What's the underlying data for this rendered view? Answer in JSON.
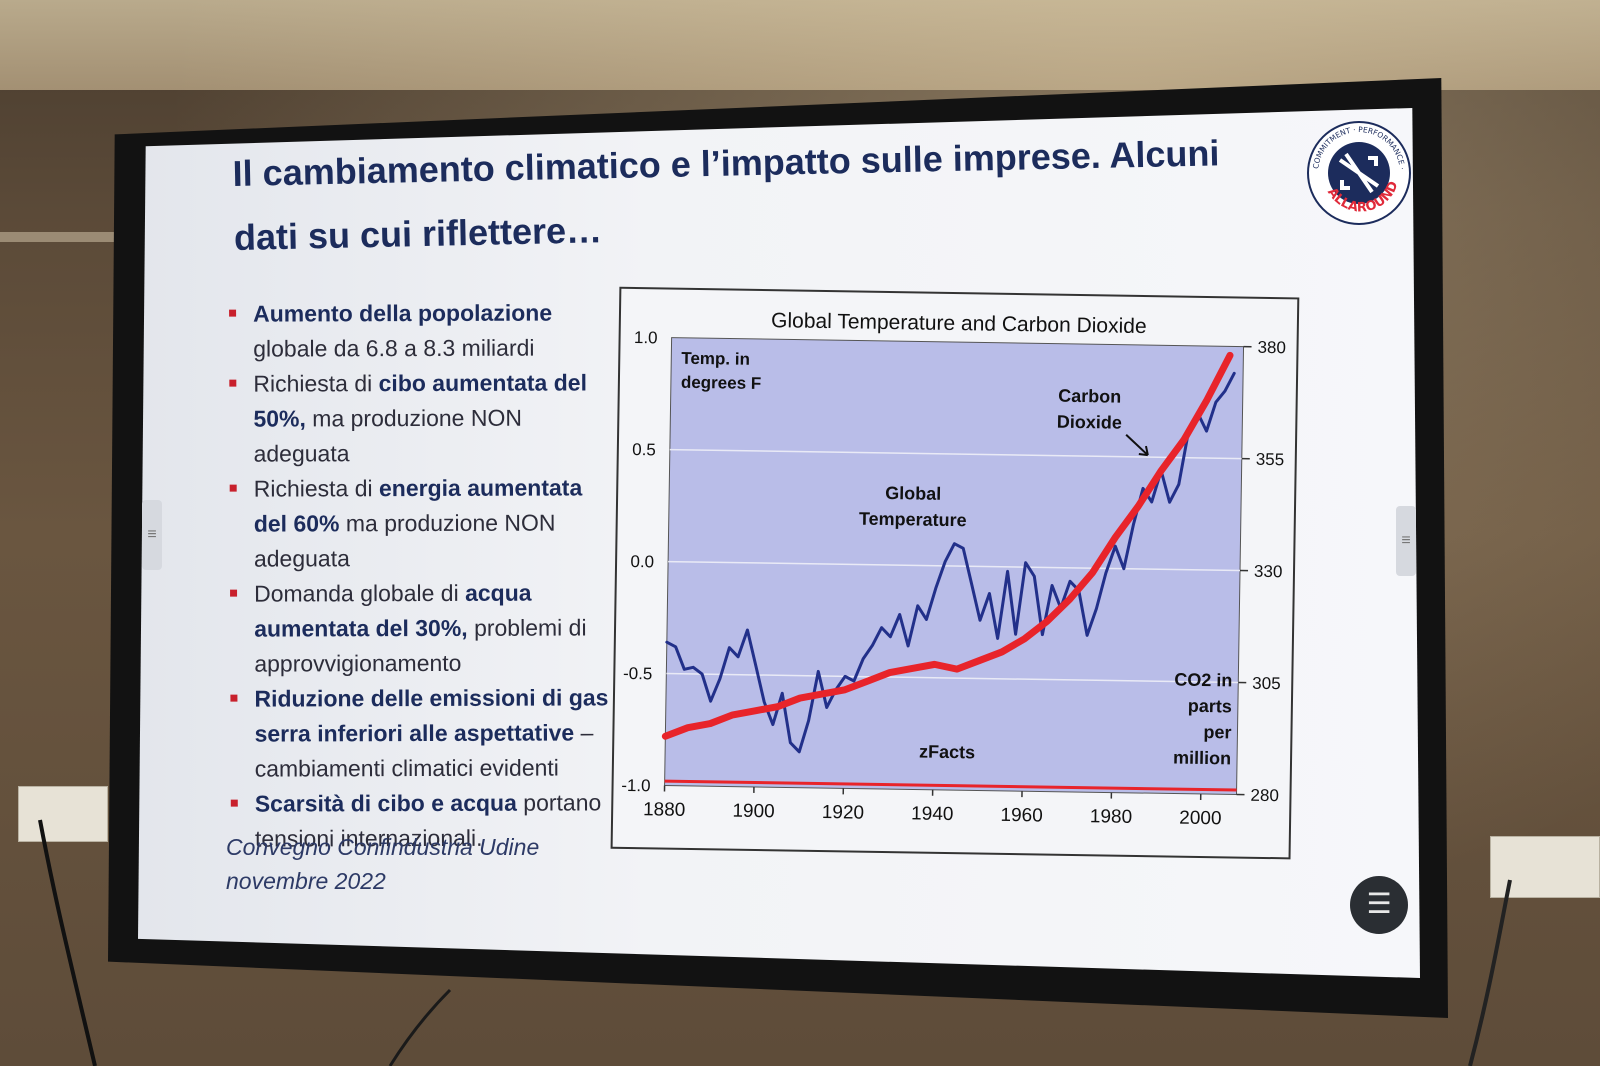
{
  "slide": {
    "title_line1": "Il cambiamento climatico e l’impatto sulle imprese. Alcuni",
    "title_line2": "dati su cui riflettere…",
    "bullets": [
      {
        "bold": "Aumento della popolazione",
        "text": " globale da 6.8 a 8.3 miliardi",
        "pre": ""
      },
      {
        "pre": "Richiesta di ",
        "bold": "cibo aumentata del 50%,",
        "text": " ma produzione NON adeguata"
      },
      {
        "pre": "Richiesta di ",
        "bold": "energia aumentata del 60%",
        "text": " ma produzione NON adeguata"
      },
      {
        "pre": "Domanda globale di ",
        "bold": "acqua aumentata del 30%,",
        "text": " problemi di approvvigionamento"
      },
      {
        "pre": "",
        "bold": "Riduzione delle emissioni di gas serra inferiori alle aspettative",
        "text": " – cambiamenti climatici evidenti"
      },
      {
        "pre": "",
        "bold": "Scarsità di cibo e acqua",
        "text": " portano tensioni internazionali."
      }
    ],
    "footnote_line1": "Convegno Confindustria Udine",
    "footnote_line2": "novembre 2022",
    "logo": {
      "outer_text": "COMMITMENT · PERFORMANCE · COMMUNICATION",
      "brand": "ALLAROUND"
    }
  },
  "chart_data": {
    "type": "line",
    "title": "Global Temperature and Carbon Dioxide",
    "left_axis_label_line1": "Temp. in",
    "left_axis_label_line2": "degrees F",
    "right_axis_label": [
      "CO2 in",
      "parts",
      "per",
      "million"
    ],
    "annotation_temp": [
      "Global",
      "Temperature"
    ],
    "annotation_co2": [
      "Carbon",
      "Dioxide"
    ],
    "watermark": "zFacts",
    "x_ticks": [
      "1880",
      "1900",
      "1920",
      "1940",
      "1960",
      "1980",
      "2000"
    ],
    "y_left_ticks": [
      "1.0",
      "0.5",
      "0.0",
      "-0.5",
      "-1.0"
    ],
    "y_right_ticks": [
      "380",
      "355",
      "330",
      "305",
      "280"
    ],
    "x_range": [
      1880,
      2008
    ],
    "y_left_range": [
      -1.0,
      1.0
    ],
    "y_right_range": [
      280,
      380
    ],
    "series": [
      {
        "name": "Global Temperature",
        "axis": "left",
        "color": "#22308a",
        "x": [
          1880,
          1882,
          1884,
          1886,
          1888,
          1890,
          1892,
          1894,
          1896,
          1898,
          1900,
          1902,
          1904,
          1906,
          1908,
          1910,
          1912,
          1914,
          1916,
          1918,
          1920,
          1922,
          1924,
          1926,
          1928,
          1930,
          1932,
          1934,
          1936,
          1938,
          1940,
          1942,
          1944,
          1946,
          1948,
          1950,
          1952,
          1954,
          1956,
          1958,
          1960,
          1962,
          1964,
          1966,
          1968,
          1970,
          1972,
          1974,
          1976,
          1978,
          1980,
          1982,
          1984,
          1986,
          1988,
          1990,
          1992,
          1994,
          1996,
          1998,
          2000,
          2002,
          2004,
          2006
        ],
        "y": [
          -0.36,
          -0.38,
          -0.48,
          -0.47,
          -0.5,
          -0.62,
          -0.52,
          -0.38,
          -0.42,
          -0.3,
          -0.46,
          -0.62,
          -0.72,
          -0.58,
          -0.8,
          -0.84,
          -0.7,
          -0.48,
          -0.64,
          -0.56,
          -0.5,
          -0.52,
          -0.42,
          -0.36,
          -0.28,
          -0.32,
          -0.22,
          -0.36,
          -0.18,
          -0.24,
          -0.1,
          0.02,
          0.1,
          0.08,
          -0.08,
          -0.24,
          -0.12,
          -0.32,
          -0.02,
          -0.3,
          0.02,
          -0.04,
          -0.3,
          -0.08,
          -0.18,
          -0.06,
          -0.1,
          -0.3,
          -0.18,
          -0.02,
          0.1,
          0.0,
          0.2,
          0.36,
          0.3,
          0.44,
          0.3,
          0.38,
          0.62,
          0.7,
          0.62,
          0.75,
          0.8,
          0.88
        ]
      },
      {
        "name": "Carbon Dioxide",
        "axis": "right",
        "color": "#e8242a",
        "x": [
          1880,
          1885,
          1890,
          1895,
          1900,
          1905,
          1910,
          1915,
          1920,
          1925,
          1930,
          1935,
          1940,
          1945,
          1950,
          1955,
          1960,
          1965,
          1970,
          1975,
          1980,
          1985,
          1990,
          1995,
          2000,
          2005
        ],
        "y": [
          291,
          293,
          294,
          296,
          297,
          298,
          300,
          301,
          302,
          304,
          306,
          307,
          308,
          307,
          309,
          311,
          314,
          318,
          323,
          329,
          337,
          344,
          352,
          359,
          368,
          378
        ]
      }
    ],
    "baseline_value": -0.98,
    "grid": "horizontal"
  },
  "ui": {
    "menu_icon": "☰",
    "side_tab_icon": "≡"
  }
}
